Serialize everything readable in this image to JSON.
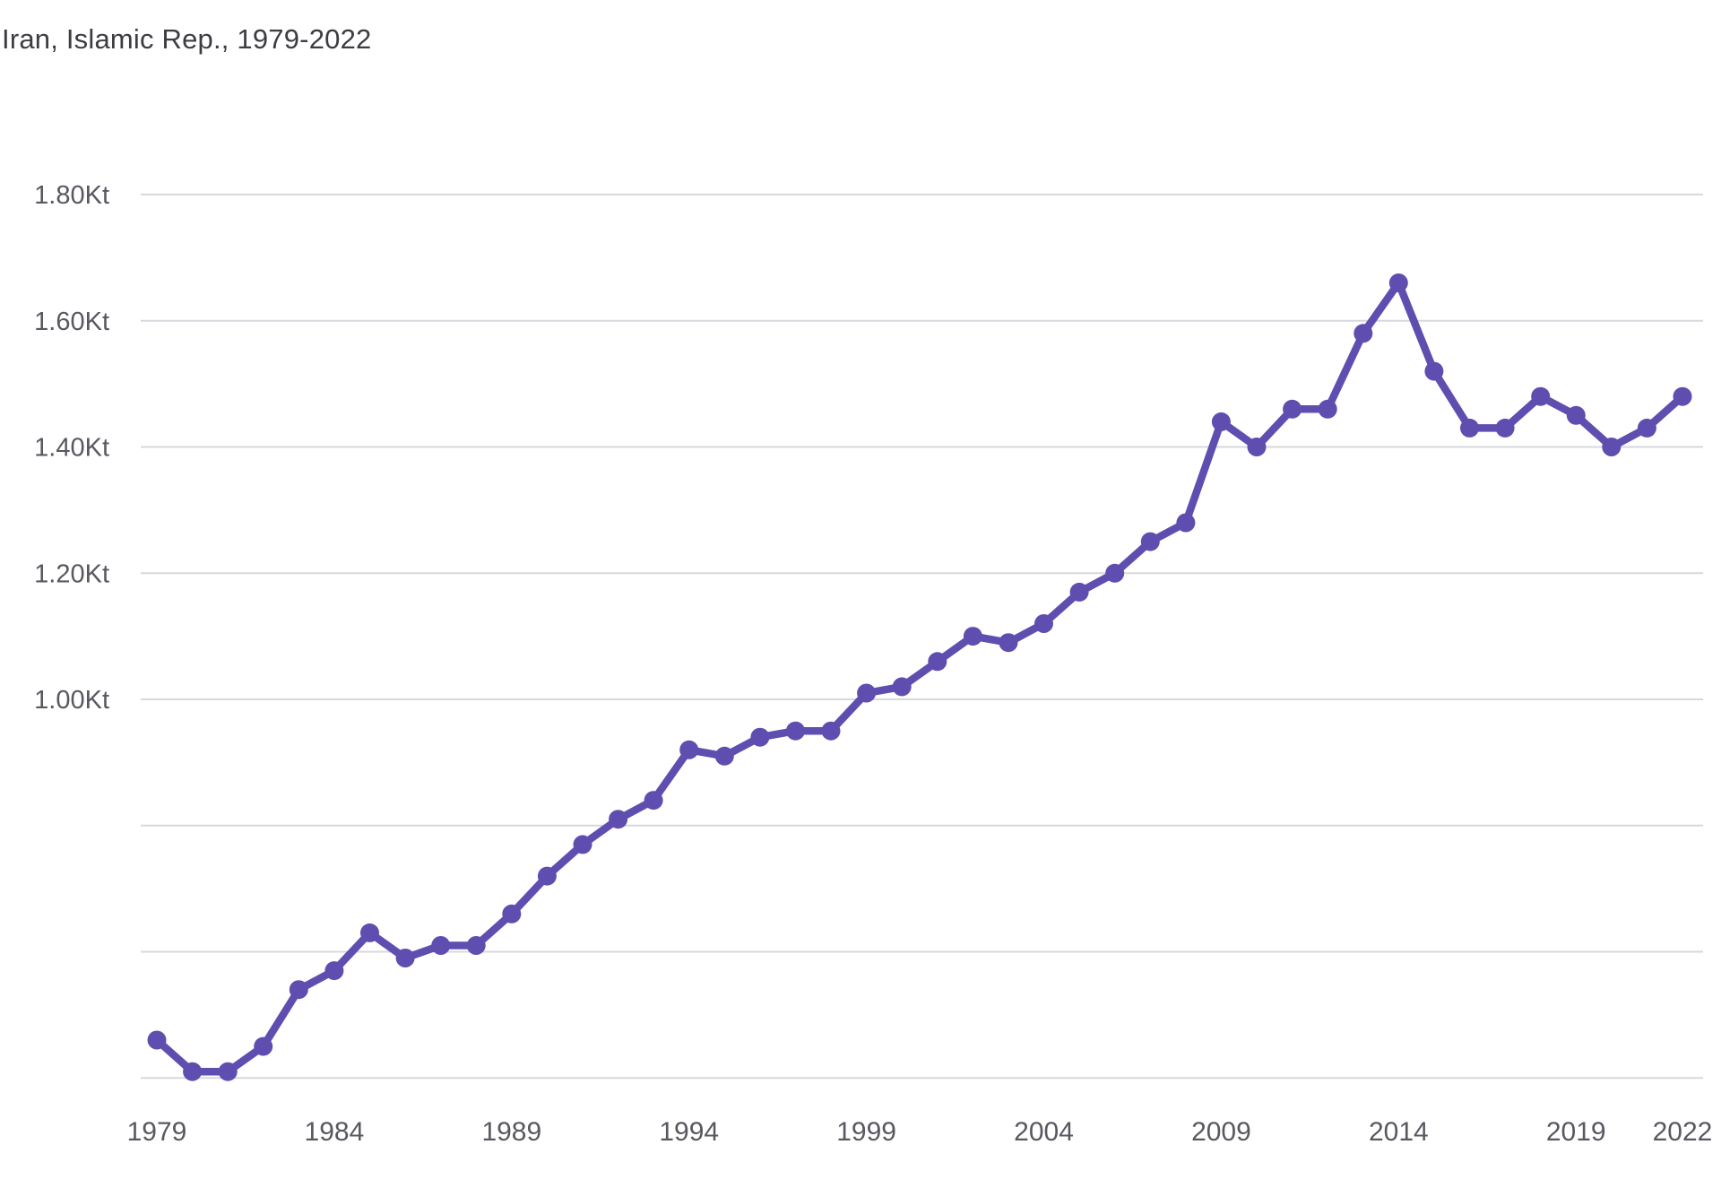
{
  "header": {
    "title": "Iran, Islamic Rep., 1979-2022"
  },
  "chart_data": {
    "type": "line",
    "title": "Iran, Islamic Rep., 1979-2022",
    "unit_suffix": "Kt",
    "x": [
      1979,
      1980,
      1981,
      1982,
      1983,
      1984,
      1985,
      1986,
      1987,
      1988,
      1989,
      1990,
      1991,
      1992,
      1993,
      1994,
      1995,
      1996,
      1997,
      1998,
      1999,
      2000,
      2001,
      2002,
      2003,
      2004,
      2005,
      2006,
      2007,
      2008,
      2009,
      2010,
      2011,
      2012,
      2013,
      2014,
      2015,
      2016,
      2017,
      2018,
      2019,
      2020,
      2021,
      2022
    ],
    "values": [
      0.46,
      0.41,
      0.41,
      0.45,
      0.54,
      0.57,
      0.63,
      0.59,
      0.61,
      0.61,
      0.66,
      0.72,
      0.77,
      0.81,
      0.84,
      0.92,
      0.91,
      0.94,
      0.95,
      0.95,
      1.01,
      1.02,
      1.06,
      1.1,
      1.09,
      1.12,
      1.17,
      1.2,
      1.25,
      1.28,
      1.44,
      1.4,
      1.46,
      1.46,
      1.58,
      1.66,
      1.52,
      1.43,
      1.43,
      1.48,
      1.45,
      1.4,
      1.43,
      1.48
    ],
    "xlabel": "",
    "ylabel": "",
    "x_tick_years": [
      1979,
      1984,
      1989,
      1994,
      1999,
      2004,
      2009,
      2014,
      2019,
      2022
    ],
    "x_tick_labels": [
      "1979",
      "1984",
      "1989",
      "1994",
      "1999",
      "2004",
      "2009",
      "2014",
      "2019",
      "2022"
    ],
    "y_gridline_values": [
      1.8,
      1.6,
      1.4,
      1.2,
      1.0,
      0.8,
      0.6,
      0.4
    ],
    "y_tick_labels": [
      "1.80Kt",
      "1.60Kt",
      "1.40Kt",
      "1.20Kt",
      "1.00Kt"
    ],
    "ylim": [
      0.4,
      1.8
    ],
    "grid": true,
    "legend": false,
    "marker": "circle",
    "colors": {
      "line": "#5F4EB0",
      "marker": "#5F4EB0",
      "gridline": "#d5d9dd",
      "tick_text": "#585860",
      "title_text": "#3c3c43",
      "background": "#ffffff"
    }
  }
}
